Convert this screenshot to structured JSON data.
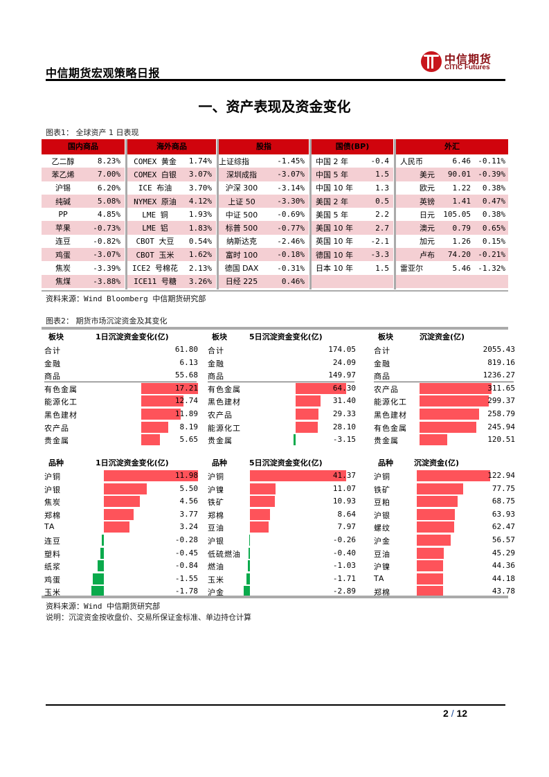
{
  "header": {
    "title": "中信期货宏观策略日报",
    "logo_cn": "中信期货",
    "logo_en": "CITIC Futures"
  },
  "section_title": "一、资产表现及资金变化",
  "figure1": {
    "caption": "图表1： 全球资产 1 日表现",
    "source": "资料来源：Wind Bloomberg 中信期货研究部",
    "groups": [
      {
        "header": "国内商品",
        "rows": [
          [
            "乙二醇",
            "8.23%"
          ],
          [
            "苯乙烯",
            "7.00%"
          ],
          [
            "沪锡",
            "6.20%"
          ],
          [
            "纯碱",
            "5.08%"
          ],
          [
            "PP",
            "4.85%"
          ],
          [
            "苹果",
            "-0.73%"
          ],
          [
            "连豆",
            "-0.82%"
          ],
          [
            "鸡蛋",
            "-3.07%"
          ],
          [
            "焦炭",
            "-3.39%"
          ],
          [
            "焦煤",
            "-3.88%"
          ]
        ]
      },
      {
        "header": "海外商品",
        "rows": [
          [
            "COMEX 黄金",
            "1.74%"
          ],
          [
            "COMEX 白银",
            "3.07%"
          ],
          [
            "ICE 布油",
            "3.70%"
          ],
          [
            "NYMEX 原油",
            "4.12%"
          ],
          [
            "LME 铜",
            "1.93%"
          ],
          [
            "LME 铝",
            "1.83%"
          ],
          [
            "CBOT 大豆",
            "0.54%"
          ],
          [
            "CBOT 玉米",
            "1.62%"
          ],
          [
            "ICE2 号棉花",
            "2.13%"
          ],
          [
            "ICE11 号糖",
            "3.26%"
          ]
        ]
      },
      {
        "header": "股指",
        "rows": [
          [
            "上证综指",
            "-1.45%"
          ],
          [
            "深圳成指",
            "-3.07%"
          ],
          [
            "沪深 300",
            "-3.14%"
          ],
          [
            "上证 50",
            "-3.30%"
          ],
          [
            "中证 500",
            "-0.69%"
          ],
          [
            "标普 500",
            "-0.77%"
          ],
          [
            "纳斯达克",
            "-2.46%"
          ],
          [
            "富时 100",
            "-0.18%"
          ],
          [
            "德国 DAX",
            "-0.31%"
          ],
          [
            "日经 225",
            "0.46%"
          ]
        ]
      },
      {
        "header": "国债(BP)",
        "rows": [
          [
            "中国 2 年",
            "-0.4"
          ],
          [
            "中国 5 年",
            "1.5"
          ],
          [
            "中国 10 年",
            "1.3"
          ],
          [
            "美国 2 年",
            "0.5"
          ],
          [
            "美国 5 年",
            "2.2"
          ],
          [
            "美国 10 年",
            "2.7"
          ],
          [
            "英国 10 年",
            "-2.1"
          ],
          [
            "德国 10 年",
            "-3.3"
          ],
          [
            "日本 10 年",
            "1.5"
          ],
          [
            "",
            ""
          ]
        ]
      },
      {
        "header": "外汇",
        "rows": [
          [
            "人民币",
            "6.46",
            "-0.11%"
          ],
          [
            "美元",
            "90.01",
            "-0.39%"
          ],
          [
            "欧元",
            "1.22",
            "0.38%"
          ],
          [
            "英镑",
            "1.41",
            "0.47%"
          ],
          [
            "日元",
            "105.05",
            "0.38%"
          ],
          [
            "澳元",
            "0.79",
            "0.65%"
          ],
          [
            "加元",
            "1.26",
            "0.15%"
          ],
          [
            "卢布",
            "74.20",
            "-0.21%"
          ],
          [
            "雷亚尔",
            "5.46",
            "-1.32%"
          ],
          [
            "",
            "",
            ""
          ]
        ]
      }
    ]
  },
  "figure2": {
    "caption": "图表2： 期货市场沉淀资金及其变化",
    "source": "资料来源：Wind 中信期货研究部",
    "note": "说明：沉淀资金按收盘价、交易所保证金标准、单边持仓计算",
    "sector_tables": [
      {
        "col1": "板块",
        "col2": "1日沉淀资金变化(亿)",
        "totals": [
          [
            "合计",
            "61.80"
          ],
          [
            "金融",
            "6.13"
          ],
          [
            "商品",
            "55.68"
          ]
        ],
        "rows": [
          [
            "有色金属",
            "17.21",
            17.21
          ],
          [
            "能源化工",
            "12.74",
            12.74
          ],
          [
            "黑色建材",
            "11.89",
            11.89
          ],
          [
            "农产品",
            "8.19",
            8.19
          ],
          [
            "贵金属",
            "5.65",
            5.65
          ]
        ]
      },
      {
        "col1": "板块",
        "col2": "5日沉淀资金变化(亿)",
        "totals": [
          [
            "合计",
            "174.05"
          ],
          [
            "金融",
            "24.09"
          ],
          [
            "商品",
            "149.97"
          ]
        ],
        "rows": [
          [
            "有色金属",
            "64.30",
            64.3
          ],
          [
            "黑色建材",
            "31.40",
            31.4
          ],
          [
            "农产品",
            "29.33",
            29.33
          ],
          [
            "能源化工",
            "28.10",
            28.1
          ],
          [
            "贵金属",
            "-3.15",
            -3.15
          ]
        ]
      },
      {
        "col1": "板块",
        "col2": "沉淀资金(亿)",
        "totals": [
          [
            "合计",
            "2055.43"
          ],
          [
            "金融",
            "819.16"
          ],
          [
            "商品",
            "1236.27"
          ]
        ],
        "rows": [
          [
            "农产品",
            "311.65",
            311.65
          ],
          [
            "能源化工",
            "299.37",
            299.37
          ],
          [
            "黑色建材",
            "258.79",
            258.79
          ],
          [
            "有色金属",
            "245.94",
            245.94
          ],
          [
            "贵金属",
            "120.51",
            120.51
          ]
        ]
      }
    ],
    "variety_tables": [
      {
        "col1": "品种",
        "col2": "1日沉淀资金变化(亿)",
        "rows": [
          [
            "沪铜",
            "11.98",
            11.98
          ],
          [
            "沪银",
            "5.50",
            5.5
          ],
          [
            "焦炭",
            "4.56",
            4.56
          ],
          [
            "郑棉",
            "3.77",
            3.77
          ],
          [
            "TA",
            "3.24",
            3.24
          ],
          [
            "连豆",
            "-0.28",
            -0.28
          ],
          [
            "塑料",
            "-0.45",
            -0.45
          ],
          [
            "纸浆",
            "-0.84",
            -0.84
          ],
          [
            "鸡蛋",
            "-1.55",
            -1.55
          ],
          [
            "玉米",
            "-1.78",
            -1.78
          ]
        ]
      },
      {
        "col1": "品种",
        "col2": "5日沉淀资金变化(亿)",
        "rows": [
          [
            "沪铜",
            "41.37",
            41.37
          ],
          [
            "沪镍",
            "11.07",
            11.07
          ],
          [
            "铁矿",
            "10.93",
            10.93
          ],
          [
            "郑棉",
            "8.64",
            8.64
          ],
          [
            "豆油",
            "7.97",
            7.97
          ],
          [
            "沪银",
            "-0.26",
            -0.26
          ],
          [
            "低硫燃油",
            "-0.40",
            -0.4
          ],
          [
            "燃油",
            "-1.03",
            -1.03
          ],
          [
            "玉米",
            "-1.71",
            -1.71
          ],
          [
            "沪金",
            "-2.89",
            -2.89
          ]
        ]
      },
      {
        "col1": "品种",
        "col2": "沉淀资金(亿)",
        "rows": [
          [
            "沪铜",
            "122.94",
            122.94
          ],
          [
            "铁矿",
            "77.75",
            77.75
          ],
          [
            "豆粕",
            "68.75",
            68.75
          ],
          [
            "沪银",
            "63.93",
            63.93
          ],
          [
            "螺纹",
            "62.47",
            62.47
          ],
          [
            "沪金",
            "56.57",
            56.57
          ],
          [
            "豆油",
            "45.29",
            45.29
          ],
          [
            "沪镍",
            "44.36",
            44.36
          ],
          [
            "TA",
            "44.18",
            44.18
          ],
          [
            "郑棉",
            "43.78",
            43.78
          ]
        ]
      }
    ]
  },
  "colors": {
    "header_red": "#d0040d",
    "row_pink": "#f4cfd3",
    "bar_pos": "#fe535a",
    "bar_neg": "#0aaa4c"
  },
  "footer": {
    "page": "2",
    "slash": "/",
    "total": "12"
  }
}
